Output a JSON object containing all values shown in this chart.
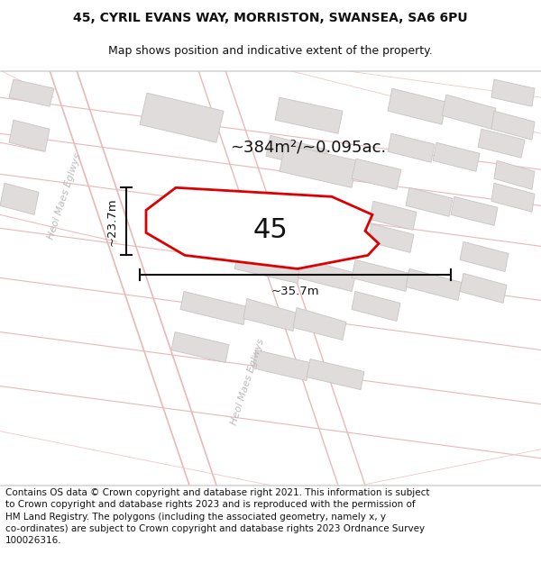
{
  "title_line1": "45, CYRIL EVANS WAY, MORRISTON, SWANSEA, SA6 6PU",
  "title_line2": "Map shows position and indicative extent of the property.",
  "footer_text": "Contains OS data © Crown copyright and database right 2021. This information is subject to Crown copyright and database rights 2023 and is reproduced with the permission of HM Land Registry. The polygons (including the associated geometry, namely x, y co-ordinates) are subject to Crown copyright and database rights 2023 Ordnance Survey 100026316.",
  "area_label": "~384m²/~0.095ac.",
  "number_label": "45",
  "dim_width": "~35.7m",
  "dim_height": "~23.7m",
  "street_label": "Heol Maes Eglwys",
  "map_bg": "#f7f4f4",
  "plot_fill": "#ffffff",
  "plot_edge_color": "#dd0000",
  "road_line_color": "#e8b8b8",
  "road_line_color2": "#f0c8c8",
  "building_fill": "#e0dcdc",
  "building_edge": "#c8c4c4",
  "dim_line_color": "#111111",
  "title_fontsize": 10,
  "subtitle_fontsize": 9,
  "footer_fontsize": 7.5,
  "area_fontsize": 13,
  "number_fontsize": 22,
  "street_fontsize": 8
}
